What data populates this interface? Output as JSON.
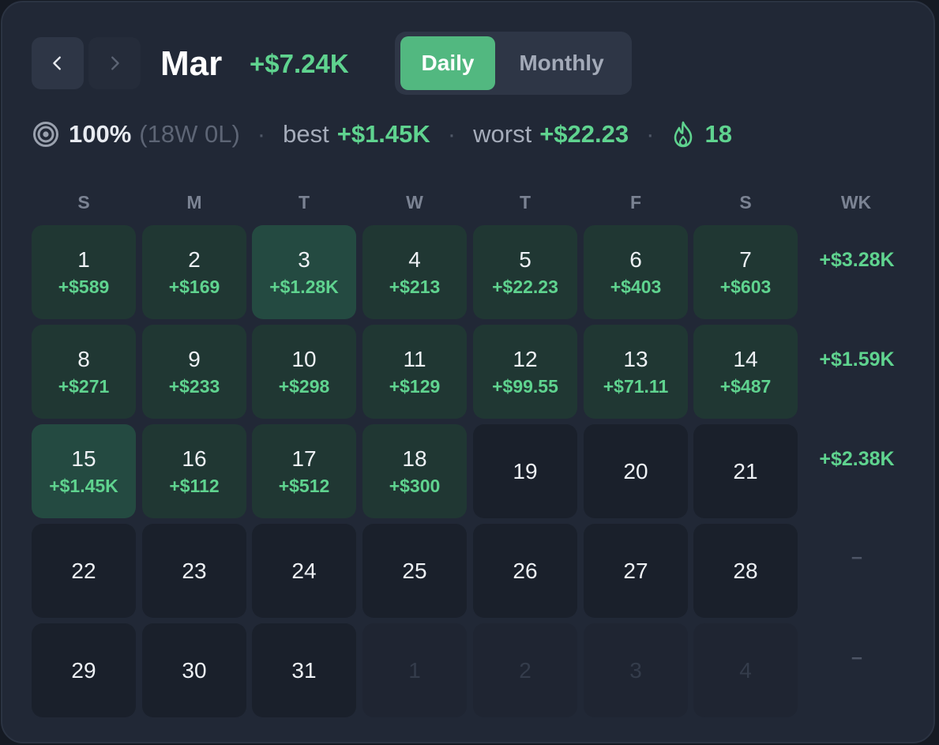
{
  "header": {
    "month": "Mar",
    "month_total": "+$7.24K",
    "prev_icon": "chevron-left-icon",
    "next_icon": "chevron-right-icon",
    "view_toggle": {
      "options": [
        "Daily",
        "Monthly"
      ],
      "selected": "Daily"
    }
  },
  "stats": {
    "target_icon": "target-icon",
    "win_rate": "100%",
    "record": "(18W 0L)",
    "best_label": "best",
    "best_value": "+$1.45K",
    "worst_label": "worst",
    "worst_value": "+$22.23",
    "streak_icon": "flame-icon",
    "streak": "18",
    "separator": "·"
  },
  "calendar": {
    "weekdays": [
      "S",
      "M",
      "T",
      "W",
      "T",
      "F",
      "S"
    ],
    "week_column_label": "WK",
    "weeks": [
      {
        "total": "+$3.28K",
        "days": [
          {
            "day": "1",
            "pnl": "+$589",
            "state": "win"
          },
          {
            "day": "2",
            "pnl": "+$169",
            "state": "win"
          },
          {
            "day": "3",
            "pnl": "+$1.28K",
            "state": "hot"
          },
          {
            "day": "4",
            "pnl": "+$213",
            "state": "win"
          },
          {
            "day": "5",
            "pnl": "+$22.23",
            "state": "win"
          },
          {
            "day": "6",
            "pnl": "+$403",
            "state": "win"
          },
          {
            "day": "7",
            "pnl": "+$603",
            "state": "win"
          }
        ]
      },
      {
        "total": "+$1.59K",
        "days": [
          {
            "day": "8",
            "pnl": "+$271",
            "state": "win"
          },
          {
            "day": "9",
            "pnl": "+$233",
            "state": "win"
          },
          {
            "day": "10",
            "pnl": "+$298",
            "state": "win"
          },
          {
            "day": "11",
            "pnl": "+$129",
            "state": "win"
          },
          {
            "day": "12",
            "pnl": "+$99.55",
            "state": "win"
          },
          {
            "day": "13",
            "pnl": "+$71.11",
            "state": "win"
          },
          {
            "day": "14",
            "pnl": "+$487",
            "state": "win"
          }
        ]
      },
      {
        "total": "+$2.38K",
        "days": [
          {
            "day": "15",
            "pnl": "+$1.45K",
            "state": "hot"
          },
          {
            "day": "16",
            "pnl": "+$112",
            "state": "win"
          },
          {
            "day": "17",
            "pnl": "+$512",
            "state": "win"
          },
          {
            "day": "18",
            "pnl": "+$300",
            "state": "win"
          },
          {
            "day": "19",
            "pnl": "",
            "state": "empty"
          },
          {
            "day": "20",
            "pnl": "",
            "state": "empty"
          },
          {
            "day": "21",
            "pnl": "",
            "state": "empty"
          }
        ]
      },
      {
        "total": "–",
        "days": [
          {
            "day": "22",
            "pnl": "",
            "state": "empty"
          },
          {
            "day": "23",
            "pnl": "",
            "state": "empty"
          },
          {
            "day": "24",
            "pnl": "",
            "state": "empty"
          },
          {
            "day": "25",
            "pnl": "",
            "state": "empty"
          },
          {
            "day": "26",
            "pnl": "",
            "state": "empty"
          },
          {
            "day": "27",
            "pnl": "",
            "state": "empty"
          },
          {
            "day": "28",
            "pnl": "",
            "state": "empty"
          }
        ]
      },
      {
        "total": "–",
        "days": [
          {
            "day": "29",
            "pnl": "",
            "state": "empty"
          },
          {
            "day": "30",
            "pnl": "",
            "state": "empty"
          },
          {
            "day": "31",
            "pnl": "",
            "state": "empty"
          },
          {
            "day": "1",
            "pnl": "",
            "state": "out"
          },
          {
            "day": "2",
            "pnl": "",
            "state": "out"
          },
          {
            "day": "3",
            "pnl": "",
            "state": "out"
          },
          {
            "day": "4",
            "pnl": "",
            "state": "out"
          }
        ]
      }
    ]
  },
  "colors": {
    "background": "#212836",
    "profit": "#5fd38f",
    "toggle_active": "#52b880",
    "win_cell": "#203733",
    "best_cell": "#244a41",
    "empty_cell": "#1a202b"
  }
}
